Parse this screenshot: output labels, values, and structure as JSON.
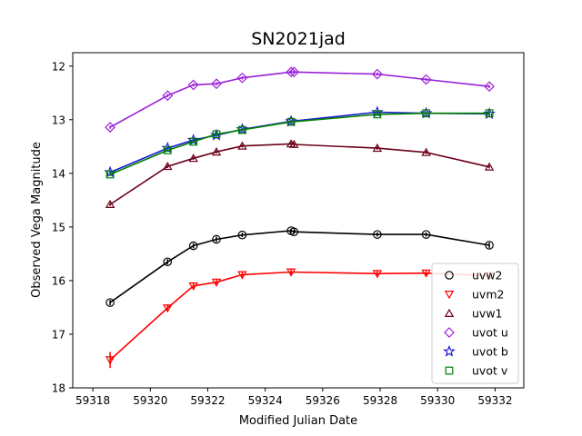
{
  "chart_data": {
    "type": "line",
    "title": "SN2021jad",
    "xlabel": "Modified Julian Date",
    "ylabel": "Observed Vega Magnitude",
    "xlim": [
      59317.3,
      59333.0
    ],
    "ylim": [
      18.0,
      11.75
    ],
    "y_inverted": true,
    "xticks": [
      59318,
      59320,
      59322,
      59324,
      59326,
      59328,
      59330,
      59332
    ],
    "yticks": [
      12,
      13,
      14,
      15,
      16,
      17,
      18
    ],
    "grid": false,
    "legend_position": "lower-right",
    "series": [
      {
        "name": "uvw2",
        "color": "#000000",
        "marker": "circle",
        "x": [
          59318.6,
          59320.6,
          59321.5,
          59322.3,
          59323.2,
          59324.9,
          59325.0,
          59327.9,
          59329.6,
          59331.8
        ],
        "y": [
          16.41,
          15.65,
          15.35,
          15.23,
          15.15,
          15.07,
          15.09,
          15.14,
          15.14,
          15.34
        ],
        "err": [
          0.05,
          0.05,
          0.05,
          0.05,
          0.04,
          0.04,
          0.04,
          0.04,
          0.04,
          0.05
        ]
      },
      {
        "name": "uvm2",
        "color": "#ff0000",
        "marker": "triangle-down",
        "x": [
          59318.6,
          59320.6,
          59321.5,
          59322.3,
          59323.2,
          59324.9,
          59327.9,
          59329.6,
          59331.8
        ],
        "y": [
          17.48,
          16.51,
          16.1,
          16.03,
          15.89,
          15.84,
          15.87,
          15.86,
          15.91
        ],
        "err": [
          0.15,
          0.07,
          0.06,
          0.06,
          0.05,
          0.05,
          0.05,
          0.05,
          0.05
        ]
      },
      {
        "name": "uvw1",
        "color": "#6b0019",
        "marker": "triangle-up",
        "x": [
          59318.6,
          59320.6,
          59321.5,
          59322.3,
          59323.2,
          59324.9,
          59325.0,
          59327.9,
          59329.6,
          59331.8
        ],
        "y": [
          14.58,
          13.87,
          13.72,
          13.6,
          13.49,
          13.45,
          13.46,
          13.53,
          13.61,
          13.88
        ],
        "err": [
          0.03,
          0.03,
          0.03,
          0.03,
          0.03,
          0.03,
          0.03,
          0.03,
          0.03,
          0.03
        ]
      },
      {
        "name": "uvot u",
        "color": "#9a20d8",
        "marker": "diamond",
        "x": [
          59318.6,
          59320.6,
          59321.5,
          59322.3,
          59323.2,
          59324.9,
          59325.0,
          59327.9,
          59329.6,
          59331.8
        ],
        "y": [
          13.14,
          12.55,
          12.35,
          12.33,
          12.22,
          12.11,
          12.11,
          12.15,
          12.25,
          12.38
        ],
        "err": [
          0.03,
          0.03,
          0.03,
          0.03,
          0.03,
          0.03,
          0.03,
          0.03,
          0.03,
          0.03
        ]
      },
      {
        "name": "uvot b",
        "color": "#1a1ad4",
        "marker": "star",
        "x": [
          59318.6,
          59320.6,
          59321.5,
          59322.3,
          59323.2,
          59324.9,
          59327.9,
          59329.6,
          59331.8
        ],
        "y": [
          13.98,
          13.53,
          13.38,
          13.29,
          13.18,
          13.03,
          12.86,
          12.88,
          12.89
        ],
        "err": [
          0.03,
          0.03,
          0.03,
          0.03,
          0.03,
          0.03,
          0.03,
          0.03,
          0.03
        ]
      },
      {
        "name": "uvot v",
        "color": "#008000",
        "marker": "square",
        "x": [
          59318.6,
          59320.6,
          59321.5,
          59322.3,
          59323.2,
          59324.9,
          59327.9,
          59329.6,
          59331.8
        ],
        "y": [
          14.02,
          13.57,
          13.41,
          13.27,
          13.19,
          13.04,
          12.9,
          12.88,
          12.88
        ],
        "err": [
          0.03,
          0.03,
          0.03,
          0.03,
          0.03,
          0.03,
          0.03,
          0.03,
          0.03
        ]
      }
    ]
  }
}
